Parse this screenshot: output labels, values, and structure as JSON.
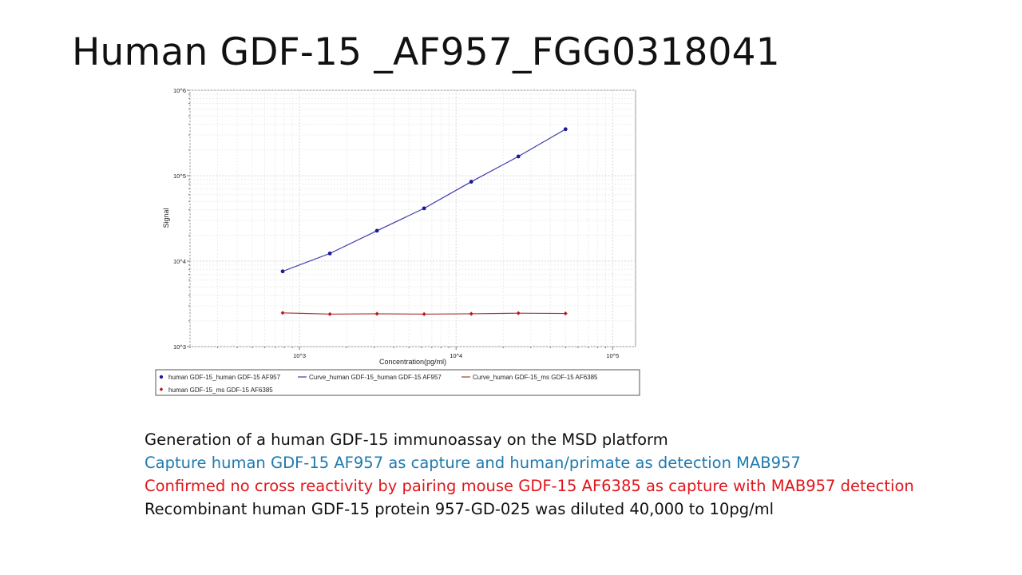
{
  "slide": {
    "title": "Human GDF-15 _AF957_FGG0318041",
    "caption_lines": [
      {
        "text": "Generation of a human GDF-15 immunoassay on the MSD platform",
        "color": "#111111"
      },
      {
        "text": "Capture human GDF-15 AF957 as capture and human/primate as detection MAB957",
        "color": "#1f7ab0"
      },
      {
        "text": "Confirmed no cross reactivity by pairing mouse GDF-15 AF6385 as capture with MAB957 detection",
        "color": "#e0161b"
      },
      {
        "text": "Recombinant human GDF-15 protein 957-GD-025 was diluted 40,000 to 10pg/ml",
        "color": "#111111"
      }
    ]
  },
  "chart_data": {
    "type": "scatter",
    "xlabel": "Concentration(pg/ml)",
    "ylabel": "Signal",
    "x_scale": "log",
    "y_scale": "log",
    "xlim": [
      200,
      140000
    ],
    "ylim": [
      1000,
      1000000
    ],
    "x_ticks": [
      {
        "value": 1000,
        "label": "10^3"
      },
      {
        "value": 10000,
        "label": "10^4"
      },
      {
        "value": 100000,
        "label": "10^5"
      }
    ],
    "y_ticks": [
      {
        "value": 1000,
        "label": "10^3"
      },
      {
        "value": 10000,
        "label": "10^4"
      },
      {
        "value": 100000,
        "label": "10^5"
      },
      {
        "value": 1000000,
        "label": "10^6"
      }
    ],
    "grid": true,
    "legend_position": "bottom",
    "series": [
      {
        "name": "human GDF-15_human GDF-15 AF957",
        "kind": "points",
        "marker": "circle",
        "color": "#1a1a9c",
        "x": [
          781,
          1563,
          3125,
          6250,
          12500,
          25000,
          50000
        ],
        "y": [
          7600,
          12300,
          22700,
          41500,
          85000,
          168000,
          350000
        ]
      },
      {
        "name": "Curve_human GDF-15_human GDF-15 AF957",
        "kind": "curve",
        "color": "#3b3baa",
        "x": [
          781,
          1563,
          3125,
          6250,
          12500,
          25000,
          50000
        ],
        "y": [
          7600,
          12300,
          22700,
          41500,
          85000,
          168000,
          350000
        ]
      },
      {
        "name": "Curve_human GDF-15_ms GDF-15 AF6385",
        "kind": "curve",
        "color": "#a83a3a",
        "x": [
          781,
          1563,
          3125,
          6250,
          12500,
          25000,
          50000
        ],
        "y": [
          2480,
          2400,
          2420,
          2400,
          2420,
          2460,
          2440
        ]
      },
      {
        "name": "human GDF-15_ms GDF-15 AF6385",
        "kind": "points",
        "marker": "diamond",
        "color": "#c0151b",
        "x": [
          781,
          1563,
          3125,
          6250,
          12500,
          25000,
          50000
        ],
        "y": [
          2480,
          2400,
          2420,
          2400,
          2420,
          2460,
          2440
        ]
      }
    ]
  }
}
